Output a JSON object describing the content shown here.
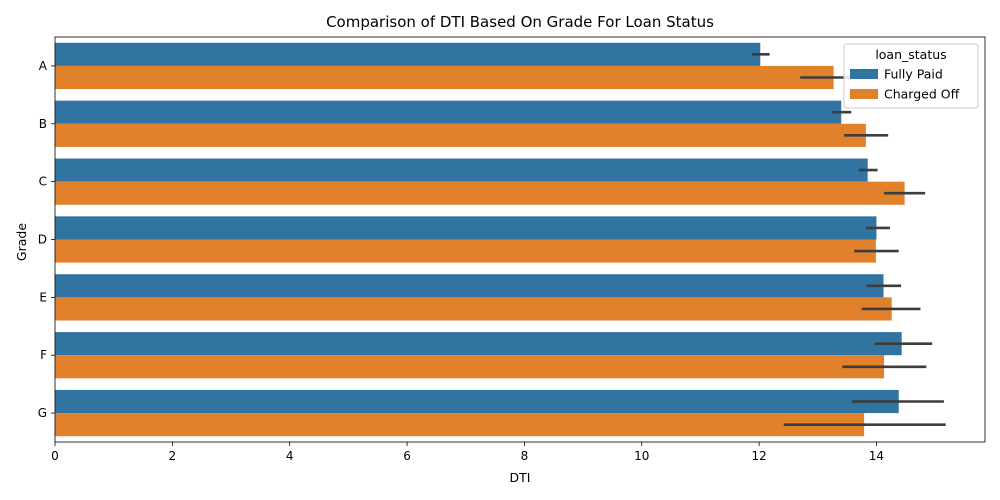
{
  "chart_data": {
    "type": "bar",
    "orientation": "horizontal",
    "title": "Comparison of DTI Based On Grade For Loan Status",
    "xlabel": "DTI",
    "ylabel": "Grade",
    "xlim": [
      0,
      15.85
    ],
    "xticks": [
      0,
      2,
      4,
      6,
      8,
      10,
      12,
      14
    ],
    "categories": [
      "A",
      "B",
      "C",
      "D",
      "E",
      "F",
      "G"
    ],
    "legend": {
      "title": "loan_status",
      "position": "top-right"
    },
    "grid": false,
    "series": [
      {
        "name": "Fully Paid",
        "color": "#3274a1",
        "values": [
          12.02,
          13.4,
          13.85,
          14.0,
          14.12,
          14.43,
          14.38
        ],
        "ci_low": [
          11.88,
          13.25,
          13.7,
          13.82,
          13.83,
          13.97,
          13.58
        ],
        "ci_high": [
          12.18,
          13.57,
          14.02,
          14.23,
          14.42,
          14.95,
          15.15
        ]
      },
      {
        "name": "Charged Off",
        "color": "#e1812c",
        "values": [
          13.27,
          13.82,
          14.48,
          13.99,
          14.26,
          14.13,
          13.79
        ],
        "ci_low": [
          12.7,
          13.45,
          14.13,
          13.62,
          13.75,
          13.42,
          12.42
        ],
        "ci_high": [
          13.82,
          14.2,
          14.83,
          14.38,
          14.75,
          14.85,
          15.18
        ]
      }
    ]
  }
}
